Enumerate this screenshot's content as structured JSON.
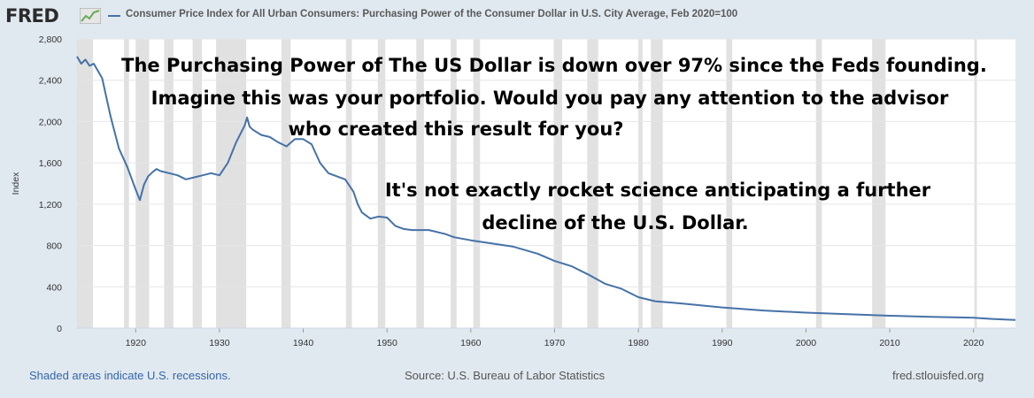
{
  "header": {
    "logo": "FRED",
    "logo_icon": "chart-line-icon",
    "legend": "Consumer Price Index for All Urban Consumers: Purchasing Power of the Consumer Dollar in U.S. City Average, Feb 2020=100"
  },
  "footer": {
    "recessions_note": "Shaded areas indicate U.S. recessions.",
    "source": "Source: U.S. Bureau of Labor Statistics",
    "site": "fred.stlouisfed.org"
  },
  "colors": {
    "background": "#e1e9f0",
    "plot": "#ffffff",
    "series": "#4572a7",
    "recession": "#e1e1e1",
    "grid": "#e6e6e6"
  },
  "chart_data": {
    "type": "line",
    "ylabel": "Index",
    "xlim": [
      1913,
      2025
    ],
    "ylim": [
      0,
      2800
    ],
    "yticks": [
      0,
      400,
      800,
      1200,
      1600,
      2000,
      2400,
      2800
    ],
    "xticks": [
      1920,
      1930,
      1940,
      1950,
      1960,
      1970,
      1980,
      1990,
      2000,
      2010,
      2020
    ],
    "grid": "horizontal",
    "series": [
      {
        "name": "Consumer Price Index for All Urban Consumers: Purchasing Power of the Consumer Dollar in U.S. City Average, Feb 2020=100",
        "x": [
          1913,
          1913.5,
          1914,
          1914.5,
          1915,
          1916,
          1917,
          1918,
          1919,
          1920,
          1920.5,
          1921,
          1921.5,
          1922,
          1922.5,
          1923,
          1924,
          1925,
          1926,
          1927,
          1928,
          1929,
          1930,
          1931,
          1932,
          1933,
          1933.3,
          1933.6,
          1934,
          1935,
          1936,
          1937,
          1938,
          1939,
          1940,
          1941,
          1942,
          1943,
          1944,
          1945,
          1946,
          1946.5,
          1947,
          1948,
          1949,
          1950,
          1951,
          1952,
          1953,
          1955,
          1957,
          1958,
          1960,
          1965,
          1968,
          1970,
          1972,
          1974,
          1976,
          1978,
          1980,
          1982,
          1985,
          1990,
          1995,
          2000,
          2005,
          2010,
          2015,
          2020,
          2022,
          2024,
          2025
        ],
        "values": [
          2630,
          2560,
          2600,
          2540,
          2560,
          2420,
          2050,
          1740,
          1560,
          1340,
          1240,
          1390,
          1470,
          1510,
          1540,
          1520,
          1500,
          1480,
          1440,
          1460,
          1480,
          1500,
          1480,
          1600,
          1800,
          1960,
          2040,
          1950,
          1920,
          1870,
          1850,
          1800,
          1760,
          1830,
          1830,
          1780,
          1600,
          1500,
          1470,
          1440,
          1320,
          1200,
          1120,
          1060,
          1080,
          1070,
          990,
          960,
          950,
          950,
          910,
          880,
          850,
          790,
          720,
          650,
          600,
          520,
          430,
          380,
          300,
          260,
          240,
          200,
          170,
          150,
          135,
          120,
          110,
          100,
          90,
          82,
          80
        ]
      }
    ],
    "recessions": [
      [
        1913.0,
        1914.9
      ],
      [
        1918.6,
        1919.2
      ],
      [
        1920.0,
        1921.6
      ],
      [
        1923.4,
        1924.5
      ],
      [
        1926.8,
        1927.9
      ],
      [
        1929.6,
        1933.2
      ],
      [
        1937.4,
        1938.5
      ],
      [
        1945.1,
        1945.8
      ],
      [
        1948.9,
        1949.8
      ],
      [
        1953.5,
        1954.4
      ],
      [
        1957.6,
        1958.3
      ],
      [
        1960.3,
        1961.1
      ],
      [
        1969.9,
        1970.9
      ],
      [
        1973.9,
        1975.2
      ],
      [
        1980.0,
        1980.5
      ],
      [
        1981.5,
        1982.9
      ],
      [
        1990.5,
        1991.2
      ],
      [
        2001.2,
        2001.9
      ],
      [
        2007.9,
        2009.5
      ],
      [
        2020.1,
        2020.4
      ]
    ]
  },
  "annotations": {
    "lines": [
      "The Purchasing Power of The US Dollar is down over 97% since the Feds founding.",
      "Imagine this was your portfolio.  Would you pay any attention to the advisor",
      "who created this result for you?",
      "It's not exactly rocket science anticipating a further",
      "decline of the U.S. Dollar."
    ]
  }
}
